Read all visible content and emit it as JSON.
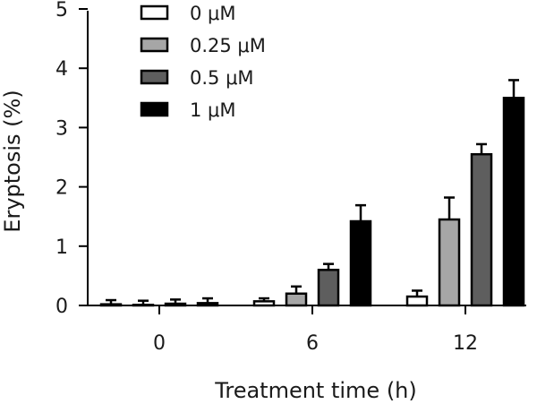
{
  "chart_data": {
    "type": "bar",
    "title": "",
    "xlabel": "Treatment time (h)",
    "ylabel": "Eryptosis (%)",
    "ylim": [
      0,
      5
    ],
    "yticks": [
      "0",
      "1",
      "2",
      "3",
      "4",
      "5"
    ],
    "categories": [
      "0",
      "6",
      "12"
    ],
    "grid": false,
    "legend_position": "top-left",
    "error_bars": "positive",
    "series": [
      {
        "name": "0 μM",
        "color": "#ffffff",
        "values": [
          0.02,
          0.07,
          0.15
        ],
        "errors": [
          0.07,
          0.05,
          0.1
        ]
      },
      {
        "name": "0.25 μM",
        "color": "#a6a6a6",
        "values": [
          0.01,
          0.2,
          1.45
        ],
        "errors": [
          0.07,
          0.12,
          0.37
        ]
      },
      {
        "name": "0.5 μM",
        "color": "#5e5e5e",
        "values": [
          0.03,
          0.6,
          2.55
        ],
        "errors": [
          0.07,
          0.1,
          0.17
        ]
      },
      {
        "name": "1 μM",
        "color": "#000000",
        "values": [
          0.04,
          1.42,
          3.5
        ],
        "errors": [
          0.08,
          0.27,
          0.3
        ]
      }
    ]
  }
}
